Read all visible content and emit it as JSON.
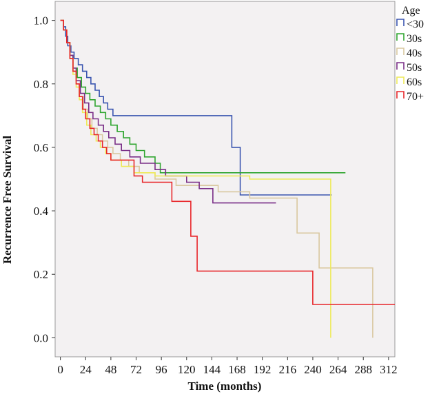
{
  "chart_data": {
    "type": "line",
    "step": true,
    "title": "",
    "xlabel": "Time (months)",
    "ylabel": "Recurrence Free Survival",
    "xlim": [
      -5,
      318
    ],
    "ylim": [
      -0.06,
      1.06
    ],
    "xticks": [
      0,
      24,
      48,
      72,
      96,
      120,
      144,
      168,
      192,
      216,
      240,
      264,
      288,
      312
    ],
    "yticks": [
      0.0,
      0.2,
      0.4,
      0.6,
      0.8,
      1.0
    ],
    "ytick_labels": [
      "0.0",
      "0.2",
      "0.4",
      "0.6",
      "0.8",
      "1.0"
    ],
    "legend_title": "Age",
    "legend_position": "top-right",
    "background": "#f3f1f2",
    "series": [
      {
        "name": "<30",
        "color": "#3a55b0",
        "points": [
          [
            0,
            1.0
          ],
          [
            3,
            0.98
          ],
          [
            5,
            0.95
          ],
          [
            7,
            0.92
          ],
          [
            10,
            0.9
          ],
          [
            13,
            0.88
          ],
          [
            17,
            0.86
          ],
          [
            21,
            0.84
          ],
          [
            25,
            0.82
          ],
          [
            29,
            0.8
          ],
          [
            33,
            0.78
          ],
          [
            37,
            0.76
          ],
          [
            41,
            0.74
          ],
          [
            45,
            0.72
          ],
          [
            50,
            0.7
          ],
          [
            163,
            0.6
          ],
          [
            171,
            0.45
          ],
          [
            258,
            0.45
          ]
        ]
      },
      {
        "name": "30s",
        "color": "#2fa52f",
        "points": [
          [
            0,
            1.0
          ],
          [
            3,
            0.97
          ],
          [
            6,
            0.93
          ],
          [
            9,
            0.89
          ],
          [
            12,
            0.85
          ],
          [
            16,
            0.82
          ],
          [
            20,
            0.79
          ],
          [
            24,
            0.77
          ],
          [
            28,
            0.75
          ],
          [
            33,
            0.73
          ],
          [
            38,
            0.71
          ],
          [
            43,
            0.69
          ],
          [
            48,
            0.67
          ],
          [
            54,
            0.65
          ],
          [
            60,
            0.63
          ],
          [
            66,
            0.61
          ],
          [
            72,
            0.59
          ],
          [
            80,
            0.57
          ],
          [
            90,
            0.55
          ],
          [
            95,
            0.52
          ],
          [
            271,
            0.52
          ]
        ]
      },
      {
        "name": "40s",
        "color": "#d9c8a0",
        "points": [
          [
            0,
            1.0
          ],
          [
            3,
            0.97
          ],
          [
            6,
            0.93
          ],
          [
            9,
            0.88
          ],
          [
            12,
            0.84
          ],
          [
            15,
            0.8
          ],
          [
            18,
            0.76
          ],
          [
            22,
            0.72
          ],
          [
            26,
            0.69
          ],
          [
            30,
            0.66
          ],
          [
            35,
            0.64
          ],
          [
            40,
            0.62
          ],
          [
            45,
            0.6
          ],
          [
            50,
            0.58
          ],
          [
            57,
            0.56
          ],
          [
            65,
            0.54
          ],
          [
            75,
            0.52
          ],
          [
            90,
            0.5
          ],
          [
            110,
            0.48
          ],
          [
            150,
            0.46
          ],
          [
            180,
            0.44
          ],
          [
            225,
            0.33
          ],
          [
            246,
            0.22
          ],
          [
            297,
            0.0
          ]
        ]
      },
      {
        "name": "50s",
        "color": "#7a2f87",
        "points": [
          [
            0,
            1.0
          ],
          [
            3,
            0.97
          ],
          [
            6,
            0.93
          ],
          [
            9,
            0.89
          ],
          [
            12,
            0.85
          ],
          [
            15,
            0.81
          ],
          [
            19,
            0.77
          ],
          [
            23,
            0.74
          ],
          [
            27,
            0.71
          ],
          [
            31,
            0.69
          ],
          [
            36,
            0.67
          ],
          [
            41,
            0.65
          ],
          [
            46,
            0.63
          ],
          [
            52,
            0.61
          ],
          [
            58,
            0.59
          ],
          [
            66,
            0.57
          ],
          [
            76,
            0.55
          ],
          [
            90,
            0.53
          ],
          [
            100,
            0.51
          ],
          [
            120,
            0.49
          ],
          [
            132,
            0.47
          ],
          [
            145,
            0.425
          ],
          [
            205,
            0.425
          ]
        ]
      },
      {
        "name": "60s",
        "color": "#eeea59",
        "points": [
          [
            0,
            1.0
          ],
          [
            3,
            0.97
          ],
          [
            6,
            0.93
          ],
          [
            9,
            0.88
          ],
          [
            12,
            0.83
          ],
          [
            15,
            0.79
          ],
          [
            18,
            0.75
          ],
          [
            21,
            0.71
          ],
          [
            25,
            0.67
          ],
          [
            29,
            0.64
          ],
          [
            34,
            0.62
          ],
          [
            38,
            0.6
          ],
          [
            43,
            0.58
          ],
          [
            48,
            0.56
          ],
          [
            58,
            0.54
          ],
          [
            70,
            0.52
          ],
          [
            90,
            0.51
          ],
          [
            180,
            0.5
          ],
          [
            257,
            0.5
          ],
          [
            257,
            0.0
          ]
        ]
      },
      {
        "name": "70+",
        "color": "#e8262a",
        "points": [
          [
            0,
            1.0
          ],
          [
            3,
            0.97
          ],
          [
            6,
            0.93
          ],
          [
            9,
            0.88
          ],
          [
            12,
            0.84
          ],
          [
            15,
            0.8
          ],
          [
            18,
            0.76
          ],
          [
            21,
            0.72
          ],
          [
            24,
            0.69
          ],
          [
            28,
            0.66
          ],
          [
            32,
            0.64
          ],
          [
            36,
            0.62
          ],
          [
            40,
            0.6
          ],
          [
            44,
            0.58
          ],
          [
            48,
            0.56
          ],
          [
            70,
            0.51
          ],
          [
            78,
            0.49
          ],
          [
            106,
            0.43
          ],
          [
            124,
            0.32
          ],
          [
            130,
            0.21
          ],
          [
            240,
            0.105
          ],
          [
            318,
            0.105
          ]
        ]
      }
    ]
  }
}
